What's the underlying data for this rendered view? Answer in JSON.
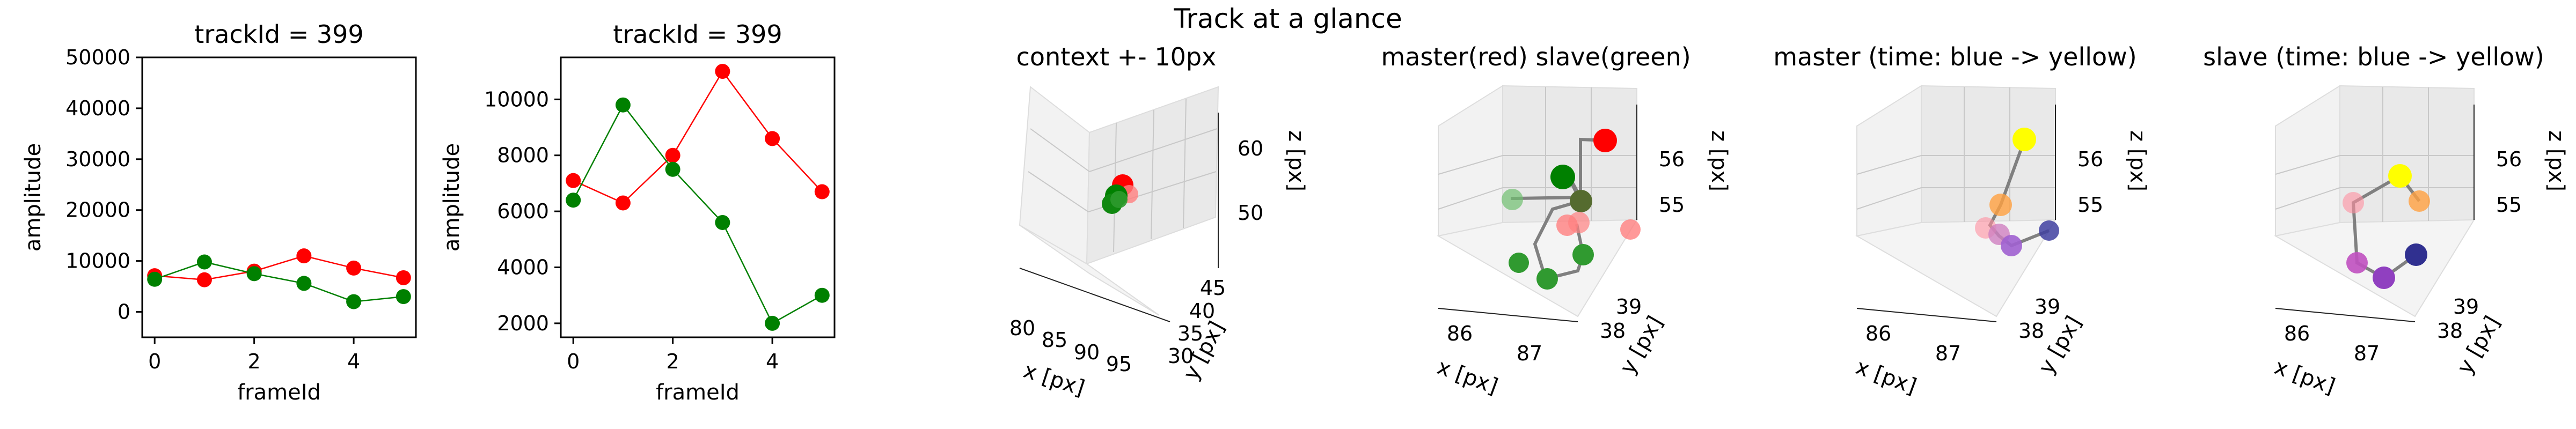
{
  "figure": {
    "suptitle": "Track at a glance"
  },
  "colors": {
    "red": "#ff0000",
    "green": "#008000",
    "track_line": "#808080"
  },
  "chart_data": [
    {
      "type": "line",
      "title": "trackId = 399",
      "xlabel": "frameId",
      "ylabel": "amplitude",
      "x": [
        0,
        1,
        2,
        3,
        4,
        5
      ],
      "xticks": [
        "0",
        "2",
        "4"
      ],
      "yticks": [
        "0",
        "10000",
        "20000",
        "30000",
        "40000",
        "50000"
      ],
      "xlim": [
        -0.25,
        5.25
      ],
      "ylim": [
        -5000,
        50000
      ],
      "series": [
        {
          "color": "#ff0000",
          "values": [
            7100,
            6300,
            8000,
            11000,
            8600,
            6700
          ]
        },
        {
          "color": "#008000",
          "values": [
            6400,
            9800,
            7500,
            5600,
            2000,
            3000
          ]
        }
      ]
    },
    {
      "type": "line",
      "title": "trackId = 399",
      "xlabel": "frameId",
      "ylabel": "amplitude",
      "x": [
        0,
        1,
        2,
        3,
        4,
        5
      ],
      "xticks": [
        "0",
        "2",
        "4"
      ],
      "yticks": [
        "2000",
        "4000",
        "6000",
        "8000",
        "10000"
      ],
      "xlim": [
        -0.25,
        5.25
      ],
      "ylim": [
        1500,
        11500
      ],
      "series": [
        {
          "color": "#ff0000",
          "values": [
            7100,
            6300,
            8000,
            11000,
            8600,
            6700
          ]
        },
        {
          "color": "#008000",
          "values": [
            6400,
            9800,
            7500,
            5600,
            2000,
            3000
          ]
        }
      ]
    },
    {
      "type": "scatter",
      "projection": "3d",
      "title": "context +- 10px",
      "xlabel": "x [px]",
      "ylabel": "y [px]",
      "zlabel": "z [px]",
      "xticks": [
        "80",
        "85",
        "90",
        "95"
      ],
      "yticks": [
        "30",
        "35",
        "40",
        "45"
      ],
      "zticks": [
        "50",
        "60"
      ]
    },
    {
      "type": "scatter",
      "projection": "3d",
      "title": "master(red) slave(green)",
      "xlabel": "x [px]",
      "ylabel": "y [px]",
      "zlabel": "z [px]",
      "xticks": [
        "86",
        "87"
      ],
      "yticks": [
        "38",
        "39"
      ],
      "zticks": [
        "55",
        "56"
      ]
    },
    {
      "type": "scatter",
      "projection": "3d",
      "title": "master (time: blue -> yellow)",
      "xlabel": "x [px]",
      "ylabel": "y [px]",
      "zlabel": "z [px]",
      "xticks": [
        "86",
        "87"
      ],
      "yticks": [
        "38",
        "39"
      ],
      "zticks": [
        "55",
        "56"
      ]
    },
    {
      "type": "scatter",
      "projection": "3d",
      "title": "slave (time: blue -> yellow)",
      "xlabel": "x [px]",
      "ylabel": "y [px]",
      "zlabel": "z [px]",
      "xticks": [
        "86",
        "87"
      ],
      "yticks": [
        "38",
        "39"
      ],
      "zticks": [
        "55",
        "56"
      ]
    }
  ]
}
